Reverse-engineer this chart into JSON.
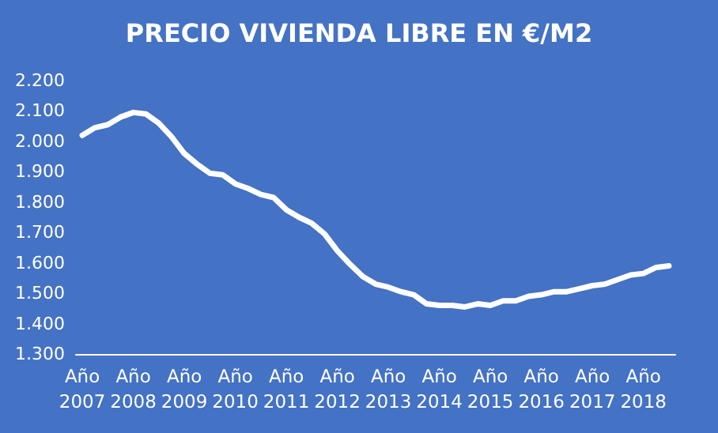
{
  "chart_data": {
    "type": "line",
    "title": "PRECIO VIVIENDA LIBRE EN €/M2",
    "categories": [
      "Año 2007",
      null,
      null,
      null,
      "Año 2008",
      null,
      null,
      null,
      "Año 2009",
      null,
      null,
      null,
      "Año 2010",
      null,
      null,
      null,
      "Año 2011",
      null,
      null,
      null,
      "Año 2012",
      null,
      null,
      null,
      "Año 2013",
      null,
      null,
      null,
      "Año 2014",
      null,
      null,
      null,
      "Año 2015",
      null,
      null,
      null,
      "Año 2016",
      null,
      null,
      null,
      "Año 2017",
      null,
      null,
      null,
      "Año 2018",
      null,
      null
    ],
    "series": [
      {
        "color": "#ffffff",
        "values": [
          2020,
          2045,
          2055,
          2080,
          2095,
          2090,
          2060,
          2015,
          1960,
          1925,
          1895,
          1890,
          1860,
          1845,
          1825,
          1815,
          1775,
          1750,
          1730,
          1695,
          1640,
          1595,
          1555,
          1530,
          1520,
          1505,
          1495,
          1465,
          1460,
          1460,
          1455,
          1465,
          1460,
          1475,
          1475,
          1490,
          1495,
          1505,
          1505,
          1515,
          1525,
          1530,
          1545,
          1560,
          1565,
          1585,
          1590
        ]
      }
    ],
    "ylim": [
      1300,
      2200
    ],
    "yticks": [
      {
        "value": 1300,
        "label": "1.300"
      },
      {
        "value": 1400,
        "label": "1.400"
      },
      {
        "value": 1500,
        "label": "1.500"
      },
      {
        "value": 1600,
        "label": "1.600"
      },
      {
        "value": 1700,
        "label": "1.700"
      },
      {
        "value": 1800,
        "label": "1.800"
      },
      {
        "value": 1900,
        "label": "1.900"
      },
      {
        "value": 2000,
        "label": "2.000"
      },
      {
        "value": 2100,
        "label": "2.100"
      },
      {
        "value": 2200,
        "label": "2.200"
      }
    ],
    "grid": false,
    "marker": "none",
    "line_style": "solid"
  }
}
